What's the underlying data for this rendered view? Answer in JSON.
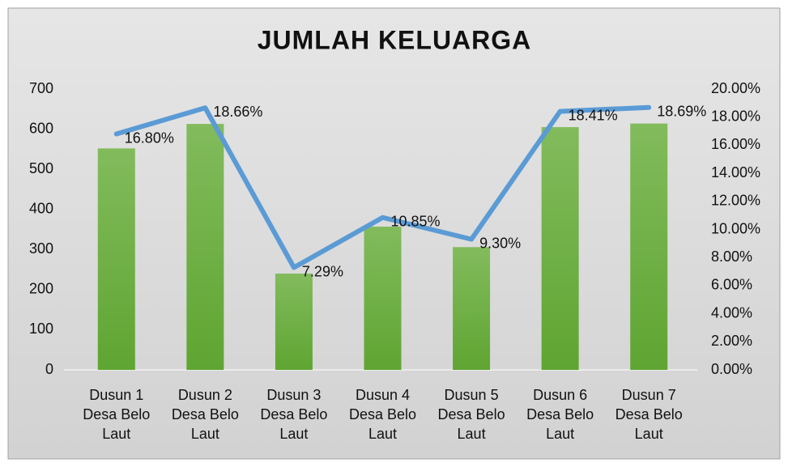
{
  "chart_data": {
    "type": "bar_line",
    "title": "JUMLAH KELUARGA",
    "categories": [
      "Dusun 1 Desa Belo Laut",
      "Dusun 2 Desa Belo Laut",
      "Dusun 3 Desa Belo Laut",
      "Dusun 4 Desa Belo Laut",
      "Dusun 5 Desa Belo Laut",
      "Dusun 6 Desa Belo Laut",
      "Dusun 7 Desa Belo Laut"
    ],
    "series": [
      {
        "type": "bar",
        "color": "#70ad47",
        "values": [
          552,
          613,
          240,
          357,
          306,
          605,
          614
        ]
      },
      {
        "type": "line",
        "axis": "y2",
        "color": "#5b9bd5",
        "values": [
          16.8,
          18.66,
          7.29,
          10.85,
          9.3,
          18.41,
          18.69
        ],
        "value_labels": [
          "16.80%",
          "18.66%",
          "7.29%",
          "10.85%",
          "9.30%",
          "18.41%",
          "18.69%"
        ]
      }
    ],
    "ylim": [
      0,
      700
    ],
    "yticks": [
      0,
      100,
      200,
      300,
      400,
      500,
      600,
      700
    ],
    "y2lim": [
      0,
      20
    ],
    "y2ticks": [
      {
        "value": 0,
        "label": "0.00%"
      },
      {
        "value": 2,
        "label": "2.00%"
      },
      {
        "value": 4,
        "label": "4.00%"
      },
      {
        "value": 6,
        "label": "6.00%"
      },
      {
        "value": 8,
        "label": "8.00%"
      },
      {
        "value": 10,
        "label": "10.00%"
      },
      {
        "value": 12,
        "label": "12.00%"
      },
      {
        "value": 14,
        "label": "14.00%"
      },
      {
        "value": 16,
        "label": "16.00%"
      },
      {
        "value": 18,
        "label": "18.00%"
      },
      {
        "value": 20,
        "label": "20.00%"
      }
    ],
    "grid": false
  }
}
